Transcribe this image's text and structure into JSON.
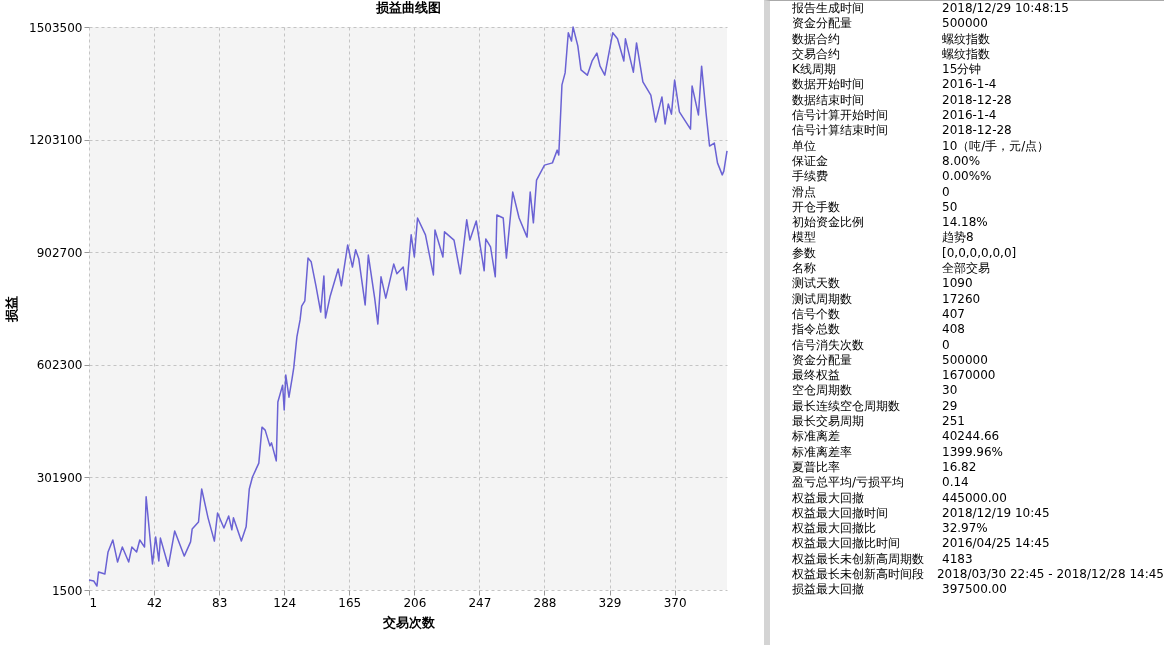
{
  "chart_data": [
    {
      "type": "line",
      "title": "损益曲线图",
      "xlabel": "交易次数",
      "ylabel": "损益",
      "x": [
        1,
        4,
        6,
        7,
        11,
        13,
        16,
        19,
        22,
        26,
        28,
        31,
        33,
        36,
        37,
        41,
        43,
        45,
        46,
        51,
        55,
        61,
        65,
        66,
        70,
        72,
        76,
        80,
        82,
        86,
        89,
        91,
        92,
        97,
        100,
        102,
        104,
        108,
        110,
        112,
        115,
        116,
        119,
        120,
        123,
        124,
        125,
        127,
        129,
        130,
        132,
        134,
        135,
        137,
        139,
        141,
        144,
        147,
        149,
        150,
        153,
        158,
        160,
        164,
        167,
        169,
        171,
        175,
        177,
        181,
        183,
        185,
        188,
        193,
        195,
        199,
        201,
        204,
        206,
        208,
        213,
        218,
        219,
        224,
        225,
        231,
        235,
        239,
        241,
        245,
        250,
        251,
        254,
        257,
        258,
        262,
        264,
        268,
        272,
        277,
        279,
        281,
        283,
        288,
        293,
        296,
        297,
        299,
        301,
        303,
        305,
        306,
        309,
        311,
        315,
        318,
        321,
        323,
        326,
        331,
        334,
        338,
        339,
        344,
        346,
        350,
        355,
        358,
        362,
        364,
        366,
        368,
        370,
        373,
        380,
        381,
        385,
        387,
        390,
        392,
        395,
        397,
        400,
        401,
        403
      ],
      "series": [
        {
          "color": "#6a62d4",
          "values": [
            28000,
            25500,
            12000,
            49500,
            44200,
            103000,
            135000,
            76000,
            116000,
            76000,
            116000,
            103000,
            135000,
            116000,
            250000,
            71000,
            143000,
            79000,
            140000,
            65000,
            159000,
            92000,
            130000,
            164000,
            183000,
            271000,
            194000,
            132000,
            207000,
            167000,
            199000,
            162000,
            194000,
            132000,
            170000,
            271000,
            303000,
            340000,
            436000,
            428000,
            386000,
            394000,
            346000,
            503000,
            548000,
            482000,
            575000,
            516000,
            567000,
            594000,
            677000,
            722000,
            759000,
            773000,
            887000,
            877000,
            813000,
            743000,
            839000,
            727000,
            786000,
            858000,
            813000,
            922000,
            863000,
            909000,
            885000,
            762000,
            895000,
            780000,
            711000,
            837000,
            780000,
            871000,
            845000,
            863000,
            802000,
            949000,
            890000,
            994000,
            949000,
            842000,
            962000,
            890000,
            957000,
            935000,
            845000,
            989000,
            935000,
            986000,
            853000,
            938000,
            917000,
            837000,
            1002000,
            994000,
            887000,
            1063000,
            994000,
            943000,
            1063000,
            981000,
            1095000,
            1135000,
            1141000,
            1175000,
            1162000,
            1349000,
            1381000,
            1488000,
            1466000,
            1503500,
            1453000,
            1389000,
            1375000,
            1413000,
            1434000,
            1399000,
            1375000,
            1488000,
            1472000,
            1413000,
            1472000,
            1383000,
            1461000,
            1357000,
            1322000,
            1250000,
            1317000,
            1245000,
            1298000,
            1271000,
            1362000,
            1277000,
            1231000,
            1346000,
            1269000,
            1399000,
            1266000,
            1186000,
            1194000,
            1141000,
            1109000,
            1119000,
            1173000
          ]
        }
      ],
      "xlim": [
        1,
        403
      ],
      "xticks": [
        1,
        42,
        83,
        124,
        165,
        206,
        247,
        288,
        329,
        370
      ],
      "ylim": [
        1500,
        1503500
      ],
      "yticks": [
        1500,
        301900,
        602300,
        902700,
        1203100,
        1503500
      ],
      "grid": true,
      "marker": "none",
      "line_style": "solid",
      "legend": false
    },
    {
      "type": "other",
      "annotations": [
        "报告生成时间",
        "2018/12/29 10:48:15",
        "资金分配量",
        "500000",
        "数据合约",
        "螺纹指数",
        "交易合约",
        "螺纹指数",
        "K线周期",
        "15分钟",
        "数据开始时间",
        "2016-1-4",
        "数据结束时间",
        "2018-12-28",
        "信号计算开始时间",
        "2016-1-4",
        "信号计算结束时间",
        "2018-12-28",
        "单位",
        "10（吨/手，元/点）",
        "保证金",
        "8.00%",
        "手续费",
        "0.00%%",
        "滑点",
        "0",
        "开仓手数",
        "50",
        "初始资金比例",
        "14.18%",
        "模型",
        "趋势8",
        "参数",
        "[0,0,0,0,0,0]",
        "名称",
        "全部交易",
        "测试天数",
        "1090",
        "测试周期数",
        "17260",
        "信号个数",
        "407",
        "指令总数",
        "408",
        "信号消失次数",
        "0",
        "资金分配量",
        "500000",
        "最终权益",
        "1670000",
        "空仓周期数",
        "30",
        "最长连续空仓周期数",
        "29",
        "最长交易周期",
        "251",
        "标准离差",
        "40244.66",
        "标准离差率",
        "1399.96%",
        "夏普比率",
        "16.82",
        "盈亏总平均/亏损平均",
        "0.14",
        "权益最大回撤",
        "445000.00",
        "权益最大回撤时间",
        "2018/12/19 10:45",
        "权益最大回撤比",
        "32.97%",
        "权益最大回撤比时间",
        "2016/04/25 14:45",
        "权益最长未创新高周期数",
        "4183",
        "权益最长未创新高时间段",
        "2018/03/30 22:45 - 2018/12/28 14:45",
        "损益最大回撤",
        "397500.00"
      ]
    }
  ]
}
